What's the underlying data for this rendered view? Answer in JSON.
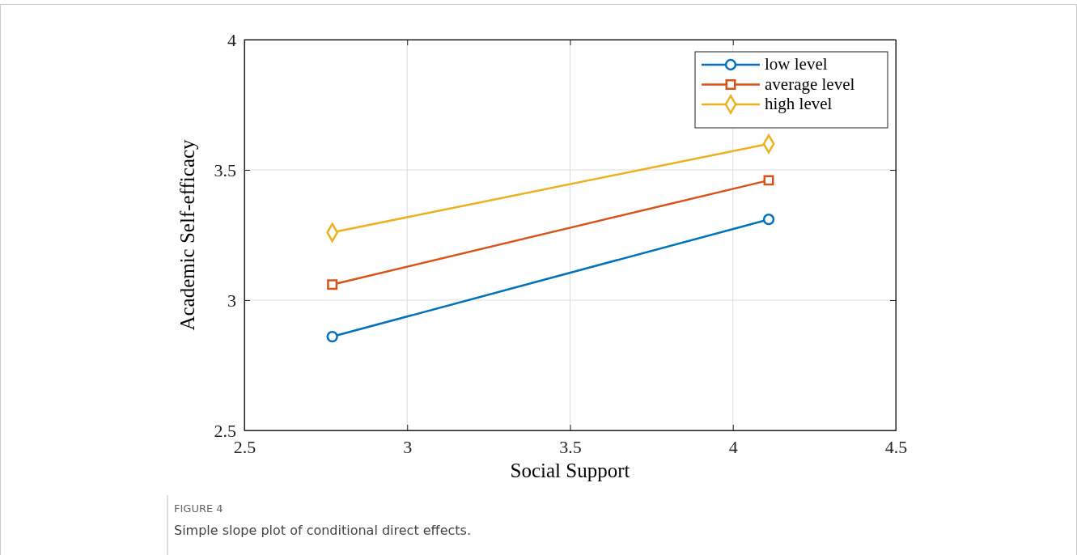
{
  "chart_data": {
    "type": "line",
    "xlabel": "Social Support",
    "ylabel": "Academic Self-efficacy",
    "x": [
      2.77,
      4.11
    ],
    "series": [
      {
        "name": "low level",
        "color": "#0072bd",
        "marker": "circle",
        "values": [
          2.86,
          3.31
        ]
      },
      {
        "name": "average level",
        "color": "#d95319",
        "marker": "square",
        "values": [
          3.06,
          3.46
        ]
      },
      {
        "name": "high level",
        "color": "#edb120",
        "marker": "diamond",
        "values": [
          3.26,
          3.6
        ]
      }
    ],
    "xlim": [
      2.5,
      4.5
    ],
    "xticks": [
      2.5,
      3,
      3.5,
      4,
      4.5
    ],
    "ylim": [
      2.5,
      4
    ],
    "yticks": [
      2.5,
      3,
      3.5,
      4
    ],
    "grid": true,
    "legend": "top right",
    "line_style": "solid",
    "annotations": [
      "FIGURE 4",
      "Simple slope plot of conditional direct effects."
    ]
  }
}
